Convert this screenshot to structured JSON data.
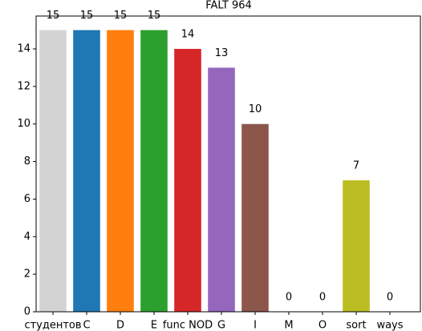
{
  "chart_data": {
    "type": "bar",
    "title": "FALT 964",
    "categories": [
      "студентов",
      "C",
      "D",
      "E",
      "func NOD",
      "G",
      "I",
      "M",
      "O",
      "sort",
      "ways"
    ],
    "values": [
      15,
      15,
      15,
      15,
      14,
      13,
      10,
      0,
      0,
      7,
      0
    ],
    "colors": [
      "#d3d3d3",
      "#1f77b4",
      "#ff7f0e",
      "#2ca02c",
      "#d62728",
      "#9467bd",
      "#8c564b",
      "#e377c2",
      "#7f7f7f",
      "#bcbd22",
      "#17becf"
    ],
    "ylim": [
      0,
      15.75
    ],
    "yticks": [
      0,
      2,
      4,
      6,
      8,
      10,
      12,
      14
    ]
  }
}
